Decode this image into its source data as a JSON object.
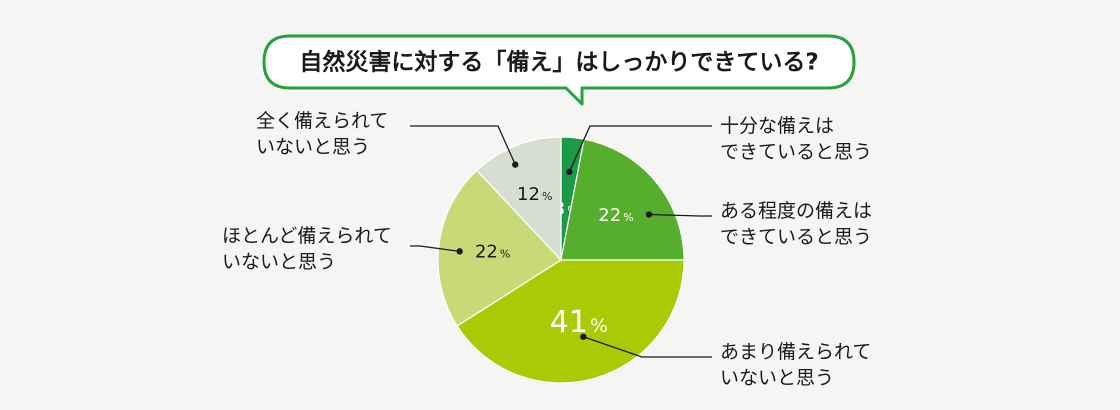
{
  "chart_data": {
    "type": "pie",
    "title": "自然災害に対する「備え」はしっかりできている?",
    "slices": [
      {
        "label": "十分な備えはできていると思う",
        "lines": [
          "十分な備えは",
          "できていると思う"
        ],
        "value": 3,
        "color": "#1d9a48"
      },
      {
        "label": "ある程度の備えはできていると思う",
        "lines": [
          "ある程度の備えは",
          "できていると思う"
        ],
        "value": 22,
        "color": "#57ad2c"
      },
      {
        "label": "あまり備えられていないと思う",
        "lines": [
          "あまり備えられて",
          "いないと思う"
        ],
        "value": 41,
        "color": "#a8cb05"
      },
      {
        "label": "ほとんど備えられていないと思う",
        "lines": [
          "ほとんど備えられて",
          "いないと思う"
        ],
        "value": 22,
        "color": "#c8d978"
      },
      {
        "label": "全く備えられていないと思う",
        "lines": [
          "全く備えられて",
          "いないと思う"
        ],
        "value": 12,
        "color": "#d8ddd1"
      }
    ],
    "unit": "%"
  },
  "colors": {
    "bubble_border": "#28a03c",
    "callout_line": "#1a1a1a",
    "background": "#f5f5f4"
  }
}
